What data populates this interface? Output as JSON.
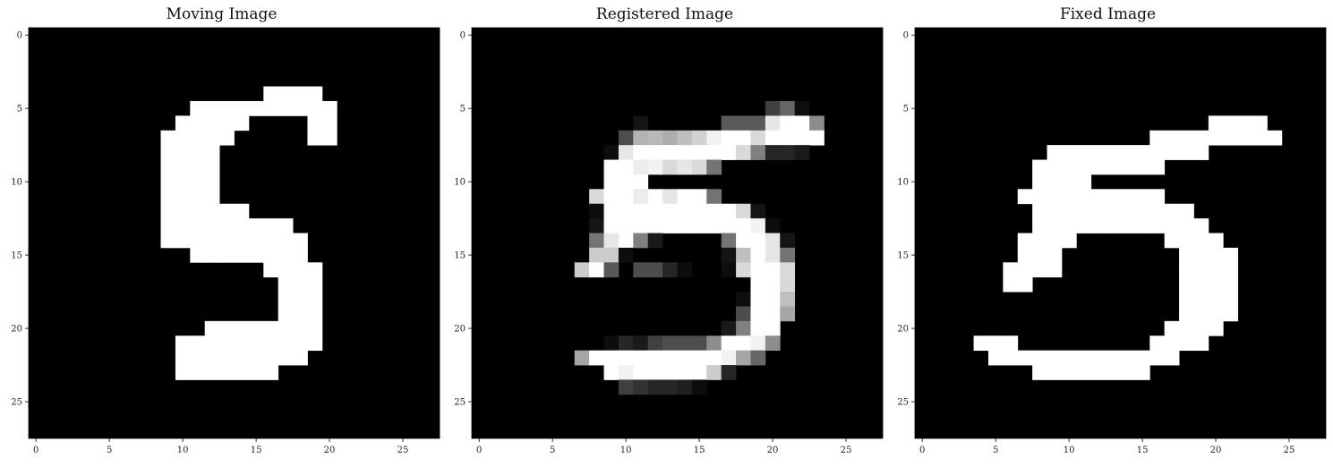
{
  "chart_data": [
    {
      "type": "heatmap",
      "title": "Moving Image",
      "colormap": "gray",
      "rows": 28,
      "cols": 28,
      "xticks": [
        0,
        5,
        10,
        15,
        20,
        25
      ],
      "yticks": [
        0,
        5,
        10,
        15,
        20,
        25
      ],
      "grid": false,
      "white_pixels": [
        [
          4,
          16,
          19
        ],
        [
          5,
          11,
          20
        ],
        [
          6,
          10,
          14
        ],
        [
          6,
          19,
          20
        ],
        [
          7,
          9,
          13
        ],
        [
          7,
          19,
          20
        ],
        [
          8,
          9,
          12
        ],
        [
          9,
          9,
          12
        ],
        [
          10,
          9,
          12
        ],
        [
          11,
          9,
          12
        ],
        [
          12,
          9,
          14
        ],
        [
          13,
          9,
          17
        ],
        [
          14,
          9,
          18
        ],
        [
          15,
          11,
          18
        ],
        [
          16,
          16,
          19
        ],
        [
          17,
          17,
          19
        ],
        [
          18,
          17,
          19
        ],
        [
          19,
          17,
          19
        ],
        [
          20,
          12,
          19
        ],
        [
          21,
          10,
          19
        ],
        [
          22,
          10,
          18
        ],
        [
          23,
          10,
          16
        ]
      ]
    },
    {
      "type": "heatmap",
      "title": "Registered Image",
      "colormap": "gray",
      "rows": 28,
      "cols": 28,
      "xticks": [
        0,
        5,
        10,
        15,
        20,
        25
      ],
      "yticks": [
        0,
        5,
        10,
        15,
        20,
        25
      ],
      "grid": false,
      "pixels": [
        [
          5,
          20,
          0.25
        ],
        [
          5,
          21,
          0.4
        ],
        [
          5,
          22,
          0.05
        ],
        [
          6,
          11,
          0.08
        ],
        [
          6,
          17,
          0.35
        ],
        [
          6,
          18,
          0.35
        ],
        [
          6,
          19,
          0.35
        ],
        [
          6,
          20,
          0.9
        ],
        [
          6,
          21,
          1
        ],
        [
          6,
          22,
          1
        ],
        [
          6,
          23,
          0.55
        ],
        [
          7,
          10,
          0.3
        ],
        [
          7,
          11,
          0.7
        ],
        [
          7,
          12,
          0.72
        ],
        [
          7,
          13,
          0.68
        ],
        [
          7,
          14,
          0.75
        ],
        [
          7,
          15,
          0.82
        ],
        [
          7,
          16,
          0.95
        ],
        [
          7,
          17,
          1
        ],
        [
          7,
          18,
          1
        ],
        [
          7,
          19,
          0.85
        ],
        [
          7,
          20,
          1
        ],
        [
          7,
          21,
          1
        ],
        [
          7,
          22,
          1
        ],
        [
          7,
          23,
          1
        ],
        [
          8,
          9,
          0.05
        ],
        [
          8,
          10,
          0.9
        ],
        [
          8,
          11,
          1
        ],
        [
          8,
          12,
          1
        ],
        [
          8,
          13,
          1
        ],
        [
          8,
          14,
          1
        ],
        [
          8,
          15,
          1
        ],
        [
          8,
          16,
          1
        ],
        [
          8,
          17,
          1
        ],
        [
          8,
          18,
          0.85
        ],
        [
          8,
          19,
          0.5
        ],
        [
          8,
          20,
          0.15
        ],
        [
          8,
          21,
          0.15
        ],
        [
          8,
          22,
          0.1
        ],
        [
          9,
          9,
          1
        ],
        [
          9,
          10,
          1
        ],
        [
          9,
          11,
          0.92
        ],
        [
          9,
          12,
          0.95
        ],
        [
          9,
          13,
          0.85
        ],
        [
          9,
          14,
          0.9
        ],
        [
          9,
          15,
          0.85
        ],
        [
          9,
          16,
          0.45
        ],
        [
          10,
          9,
          1
        ],
        [
          10,
          10,
          1
        ],
        [
          10,
          11,
          1
        ],
        [
          11,
          8,
          0.85
        ],
        [
          11,
          9,
          1
        ],
        [
          11,
          10,
          1
        ],
        [
          11,
          11,
          0.92
        ],
        [
          11,
          12,
          1
        ],
        [
          11,
          13,
          0.9
        ],
        [
          11,
          14,
          1
        ],
        [
          11,
          15,
          1
        ],
        [
          11,
          16,
          0.45
        ],
        [
          12,
          8,
          0.05
        ],
        [
          12,
          9,
          1
        ],
        [
          12,
          10,
          1
        ],
        [
          12,
          11,
          1
        ],
        [
          12,
          12,
          1
        ],
        [
          12,
          13,
          1
        ],
        [
          12,
          14,
          1
        ],
        [
          12,
          15,
          1
        ],
        [
          12,
          16,
          1
        ],
        [
          12,
          17,
          1
        ],
        [
          12,
          18,
          0.85
        ],
        [
          12,
          19,
          0.08
        ],
        [
          13,
          8,
          0.08
        ],
        [
          13,
          9,
          1
        ],
        [
          13,
          10,
          1
        ],
        [
          13,
          11,
          1
        ],
        [
          13,
          12,
          1
        ],
        [
          13,
          13,
          1
        ],
        [
          13,
          14,
          1
        ],
        [
          13,
          15,
          1
        ],
        [
          13,
          16,
          1
        ],
        [
          13,
          17,
          1
        ],
        [
          13,
          18,
          1
        ],
        [
          13,
          19,
          0.95
        ],
        [
          13,
          20,
          0.05
        ],
        [
          14,
          8,
          0.45
        ],
        [
          14,
          9,
          0.9
        ],
        [
          14,
          10,
          1
        ],
        [
          14,
          11,
          0.5
        ],
        [
          14,
          12,
          0.1
        ],
        [
          14,
          17,
          0.45
        ],
        [
          14,
          18,
          1
        ],
        [
          14,
          19,
          1
        ],
        [
          14,
          20,
          0.9
        ],
        [
          14,
          21,
          0.08
        ],
        [
          15,
          8,
          0.8
        ],
        [
          15,
          9,
          0.8
        ],
        [
          15,
          10,
          0.05
        ],
        [
          15,
          17,
          0.08
        ],
        [
          15,
          18,
          0.75
        ],
        [
          15,
          19,
          1
        ],
        [
          15,
          20,
          0.9
        ],
        [
          15,
          21,
          0.45
        ],
        [
          16,
          7,
          0.8
        ],
        [
          16,
          8,
          1
        ],
        [
          16,
          9,
          0.35
        ],
        [
          16,
          11,
          0.3
        ],
        [
          16,
          12,
          0.3
        ],
        [
          16,
          13,
          0.15
        ],
        [
          16,
          14,
          0.05
        ],
        [
          16,
          17,
          0.05
        ],
        [
          16,
          18,
          0.85
        ],
        [
          16,
          19,
          1
        ],
        [
          16,
          20,
          1
        ],
        [
          16,
          21,
          0.85
        ],
        [
          17,
          19,
          1
        ],
        [
          17,
          20,
          1
        ],
        [
          17,
          21,
          0.85
        ],
        [
          18,
          18,
          0.05
        ],
        [
          18,
          19,
          1
        ],
        [
          18,
          20,
          1
        ],
        [
          18,
          21,
          0.75
        ],
        [
          19,
          18,
          0.3
        ],
        [
          19,
          19,
          1
        ],
        [
          19,
          20,
          1
        ],
        [
          19,
          21,
          0.65
        ],
        [
          20,
          17,
          0.1
        ],
        [
          20,
          18,
          0.5
        ],
        [
          20,
          19,
          1
        ],
        [
          20,
          20,
          1
        ],
        [
          21,
          9,
          0.05
        ],
        [
          21,
          10,
          0.15
        ],
        [
          21,
          11,
          0.1
        ],
        [
          21,
          12,
          0.25
        ],
        [
          21,
          13,
          0.3
        ],
        [
          21,
          14,
          0.3
        ],
        [
          21,
          15,
          0.3
        ],
        [
          21,
          16,
          0.55
        ],
        [
          21,
          17,
          1
        ],
        [
          21,
          18,
          1
        ],
        [
          21,
          19,
          0.95
        ],
        [
          21,
          20,
          0.55
        ],
        [
          22,
          7,
          0.65
        ],
        [
          22,
          8,
          1
        ],
        [
          22,
          9,
          1
        ],
        [
          22,
          10,
          1
        ],
        [
          22,
          11,
          1
        ],
        [
          22,
          12,
          1
        ],
        [
          22,
          13,
          1
        ],
        [
          22,
          14,
          1
        ],
        [
          22,
          15,
          1
        ],
        [
          22,
          16,
          1
        ],
        [
          22,
          17,
          0.95
        ],
        [
          22,
          18,
          0.65
        ],
        [
          22,
          19,
          0.4
        ],
        [
          23,
          9,
          1
        ],
        [
          23,
          10,
          0.95
        ],
        [
          23,
          11,
          1
        ],
        [
          23,
          12,
          1
        ],
        [
          23,
          13,
          1
        ],
        [
          23,
          14,
          1
        ],
        [
          23,
          15,
          1
        ],
        [
          23,
          16,
          0.8
        ],
        [
          23,
          17,
          0.15
        ],
        [
          24,
          10,
          0.25
        ],
        [
          24,
          11,
          0.2
        ],
        [
          24,
          12,
          0.15
        ],
        [
          24,
          13,
          0.15
        ],
        [
          24,
          14,
          0.12
        ],
        [
          24,
          15,
          0.05
        ]
      ]
    },
    {
      "type": "heatmap",
      "title": "Fixed Image",
      "colormap": "gray",
      "rows": 28,
      "cols": 28,
      "xticks": [
        0,
        5,
        10,
        15,
        20,
        25
      ],
      "yticks": [
        0,
        5,
        10,
        15,
        20,
        25
      ],
      "grid": false,
      "white_pixels": [
        [
          6,
          20,
          23
        ],
        [
          7,
          16,
          24
        ],
        [
          8,
          9,
          16
        ],
        [
          8,
          16,
          19
        ],
        [
          9,
          8,
          16
        ],
        [
          10,
          8,
          11
        ],
        [
          11,
          7,
          16
        ],
        [
          12,
          8,
          18
        ],
        [
          13,
          8,
          19
        ],
        [
          14,
          7,
          10
        ],
        [
          14,
          17,
          20
        ],
        [
          15,
          7,
          9
        ],
        [
          15,
          18,
          21
        ],
        [
          16,
          6,
          9
        ],
        [
          16,
          18,
          21
        ],
        [
          17,
          6,
          7
        ],
        [
          17,
          18,
          21
        ],
        [
          18,
          18,
          21
        ],
        [
          19,
          18,
          21
        ],
        [
          20,
          17,
          20
        ],
        [
          21,
          16,
          19
        ],
        [
          21,
          4,
          6
        ],
        [
          22,
          5,
          17
        ],
        [
          23,
          8,
          15
        ]
      ]
    }
  ]
}
